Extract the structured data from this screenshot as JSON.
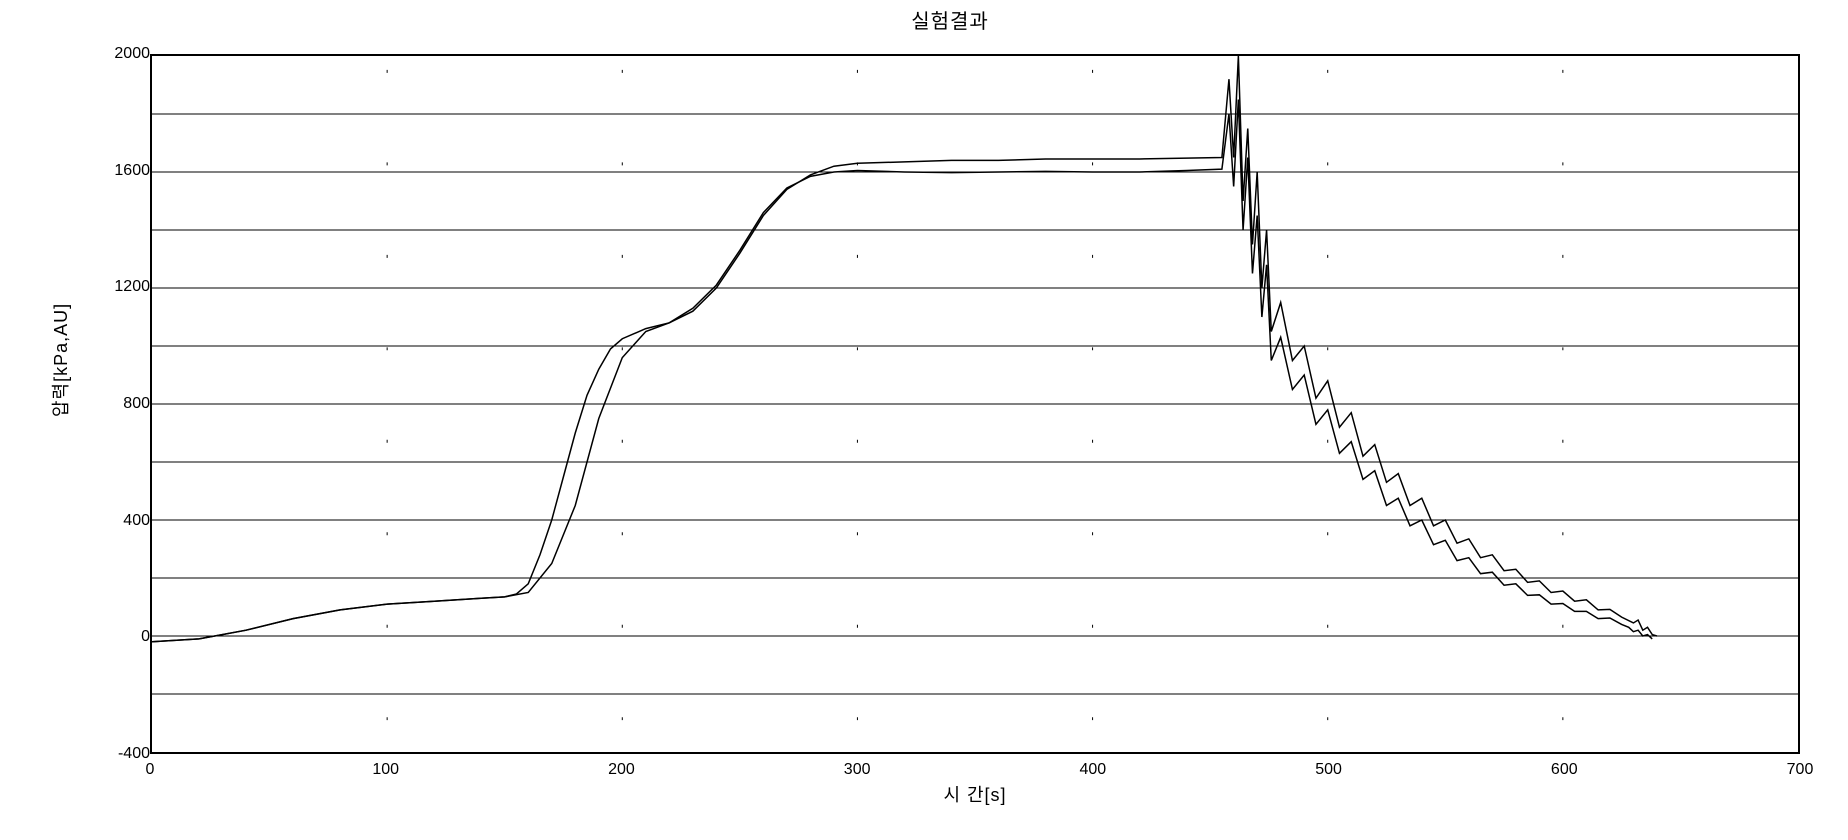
{
  "chart": {
    "type": "line",
    "title": "실험결과",
    "xlabel": "시 간[s]",
    "ylabel": "압력[kPa,AU]",
    "title_fontsize": 20,
    "label_fontsize": 18,
    "tick_fontsize": 16,
    "xlim": [
      0,
      700
    ],
    "ylim": [
      -400,
      2000
    ],
    "xtick_step": 100,
    "ytick_step": 400,
    "xticks": [
      0,
      100,
      200,
      300,
      400,
      500,
      600,
      700
    ],
    "yticks": [
      -400,
      0,
      400,
      800,
      1200,
      1600,
      2000
    ],
    "xtick_labels": [
      "0",
      "100",
      "200",
      "300",
      "400",
      "500",
      "600",
      "700"
    ],
    "ytick_labels": [
      "-400",
      "0",
      "400",
      "800",
      "1200",
      "1600",
      "2000"
    ],
    "background_color": "#ffffff",
    "border_color": "#000000",
    "grid_color": "#000000",
    "grid_line_width": 1,
    "xgrid_dashed": true,
    "series": [
      {
        "name": "series1",
        "color": "#000000",
        "line_width": 1.5,
        "data": [
          [
            0,
            -20
          ],
          [
            20,
            -10
          ],
          [
            40,
            20
          ],
          [
            60,
            60
          ],
          [
            80,
            90
          ],
          [
            100,
            110
          ],
          [
            120,
            120
          ],
          [
            140,
            130
          ],
          [
            150,
            135
          ],
          [
            160,
            150
          ],
          [
            170,
            250
          ],
          [
            180,
            450
          ],
          [
            190,
            750
          ],
          [
            200,
            960
          ],
          [
            210,
            1050
          ],
          [
            220,
            1080
          ],
          [
            230,
            1120
          ],
          [
            240,
            1200
          ],
          [
            250,
            1320
          ],
          [
            260,
            1450
          ],
          [
            270,
            1540
          ],
          [
            280,
            1590
          ],
          [
            290,
            1620
          ],
          [
            300,
            1630
          ],
          [
            320,
            1635
          ],
          [
            340,
            1640
          ],
          [
            360,
            1640
          ],
          [
            380,
            1645
          ],
          [
            400,
            1645
          ],
          [
            420,
            1645
          ],
          [
            440,
            1648
          ],
          [
            455,
            1650
          ],
          [
            458,
            1920
          ],
          [
            460,
            1650
          ],
          [
            462,
            2000
          ],
          [
            464,
            1500
          ],
          [
            466,
            1750
          ],
          [
            468,
            1350
          ],
          [
            470,
            1600
          ],
          [
            472,
            1200
          ],
          [
            474,
            1400
          ],
          [
            476,
            1050
          ],
          [
            480,
            1150
          ],
          [
            485,
            950
          ],
          [
            490,
            1000
          ],
          [
            495,
            820
          ],
          [
            500,
            880
          ],
          [
            505,
            720
          ],
          [
            510,
            770
          ],
          [
            515,
            620
          ],
          [
            520,
            660
          ],
          [
            525,
            530
          ],
          [
            530,
            560
          ],
          [
            535,
            450
          ],
          [
            540,
            475
          ],
          [
            545,
            380
          ],
          [
            550,
            400
          ],
          [
            555,
            320
          ],
          [
            560,
            335
          ],
          [
            565,
            270
          ],
          [
            570,
            280
          ],
          [
            575,
            225
          ],
          [
            580,
            230
          ],
          [
            585,
            185
          ],
          [
            590,
            190
          ],
          [
            595,
            150
          ],
          [
            600,
            155
          ],
          [
            605,
            120
          ],
          [
            610,
            125
          ],
          [
            615,
            90
          ],
          [
            620,
            92
          ],
          [
            625,
            65
          ],
          [
            630,
            45
          ],
          [
            632,
            55
          ],
          [
            634,
            20
          ],
          [
            636,
            30
          ],
          [
            638,
            5
          ],
          [
            640,
            0
          ]
        ]
      },
      {
        "name": "series2",
        "color": "#000000",
        "line_width": 1.5,
        "data": [
          [
            0,
            -20
          ],
          [
            20,
            -10
          ],
          [
            40,
            20
          ],
          [
            60,
            60
          ],
          [
            80,
            90
          ],
          [
            100,
            110
          ],
          [
            120,
            120
          ],
          [
            140,
            130
          ],
          [
            150,
            135
          ],
          [
            155,
            145
          ],
          [
            160,
            180
          ],
          [
            165,
            280
          ],
          [
            170,
            400
          ],
          [
            175,
            550
          ],
          [
            180,
            700
          ],
          [
            185,
            830
          ],
          [
            190,
            920
          ],
          [
            195,
            990
          ],
          [
            200,
            1025
          ],
          [
            210,
            1060
          ],
          [
            220,
            1080
          ],
          [
            230,
            1130
          ],
          [
            240,
            1210
          ],
          [
            250,
            1330
          ],
          [
            260,
            1460
          ],
          [
            270,
            1545
          ],
          [
            280,
            1585
          ],
          [
            290,
            1600
          ],
          [
            300,
            1605
          ],
          [
            320,
            1600
          ],
          [
            340,
            1598
          ],
          [
            360,
            1600
          ],
          [
            380,
            1602
          ],
          [
            400,
            1600
          ],
          [
            420,
            1600
          ],
          [
            440,
            1605
          ],
          [
            455,
            1610
          ],
          [
            458,
            1800
          ],
          [
            460,
            1550
          ],
          [
            462,
            1850
          ],
          [
            464,
            1400
          ],
          [
            466,
            1650
          ],
          [
            468,
            1250
          ],
          [
            470,
            1450
          ],
          [
            472,
            1100
          ],
          [
            474,
            1280
          ],
          [
            476,
            950
          ],
          [
            480,
            1030
          ],
          [
            485,
            850
          ],
          [
            490,
            900
          ],
          [
            495,
            730
          ],
          [
            500,
            780
          ],
          [
            505,
            630
          ],
          [
            510,
            670
          ],
          [
            515,
            540
          ],
          [
            520,
            570
          ],
          [
            525,
            450
          ],
          [
            530,
            475
          ],
          [
            535,
            380
          ],
          [
            540,
            400
          ],
          [
            545,
            315
          ],
          [
            550,
            330
          ],
          [
            555,
            260
          ],
          [
            560,
            270
          ],
          [
            565,
            215
          ],
          [
            570,
            220
          ],
          [
            575,
            175
          ],
          [
            580,
            180
          ],
          [
            585,
            140
          ],
          [
            590,
            142
          ],
          [
            595,
            110
          ],
          [
            600,
            112
          ],
          [
            605,
            85
          ],
          [
            610,
            85
          ],
          [
            615,
            60
          ],
          [
            620,
            62
          ],
          [
            625,
            40
          ],
          [
            628,
            30
          ],
          [
            630,
            15
          ],
          [
            632,
            20
          ],
          [
            634,
            0
          ],
          [
            636,
            5
          ],
          [
            638,
            -10
          ]
        ]
      }
    ],
    "x_dashed_positions": [
      100,
      200,
      300,
      400,
      500,
      600
    ],
    "y_dashed_positions": [
      -200,
      0,
      200,
      400,
      600,
      800,
      1000,
      1200,
      1400,
      1600,
      1800
    ]
  }
}
